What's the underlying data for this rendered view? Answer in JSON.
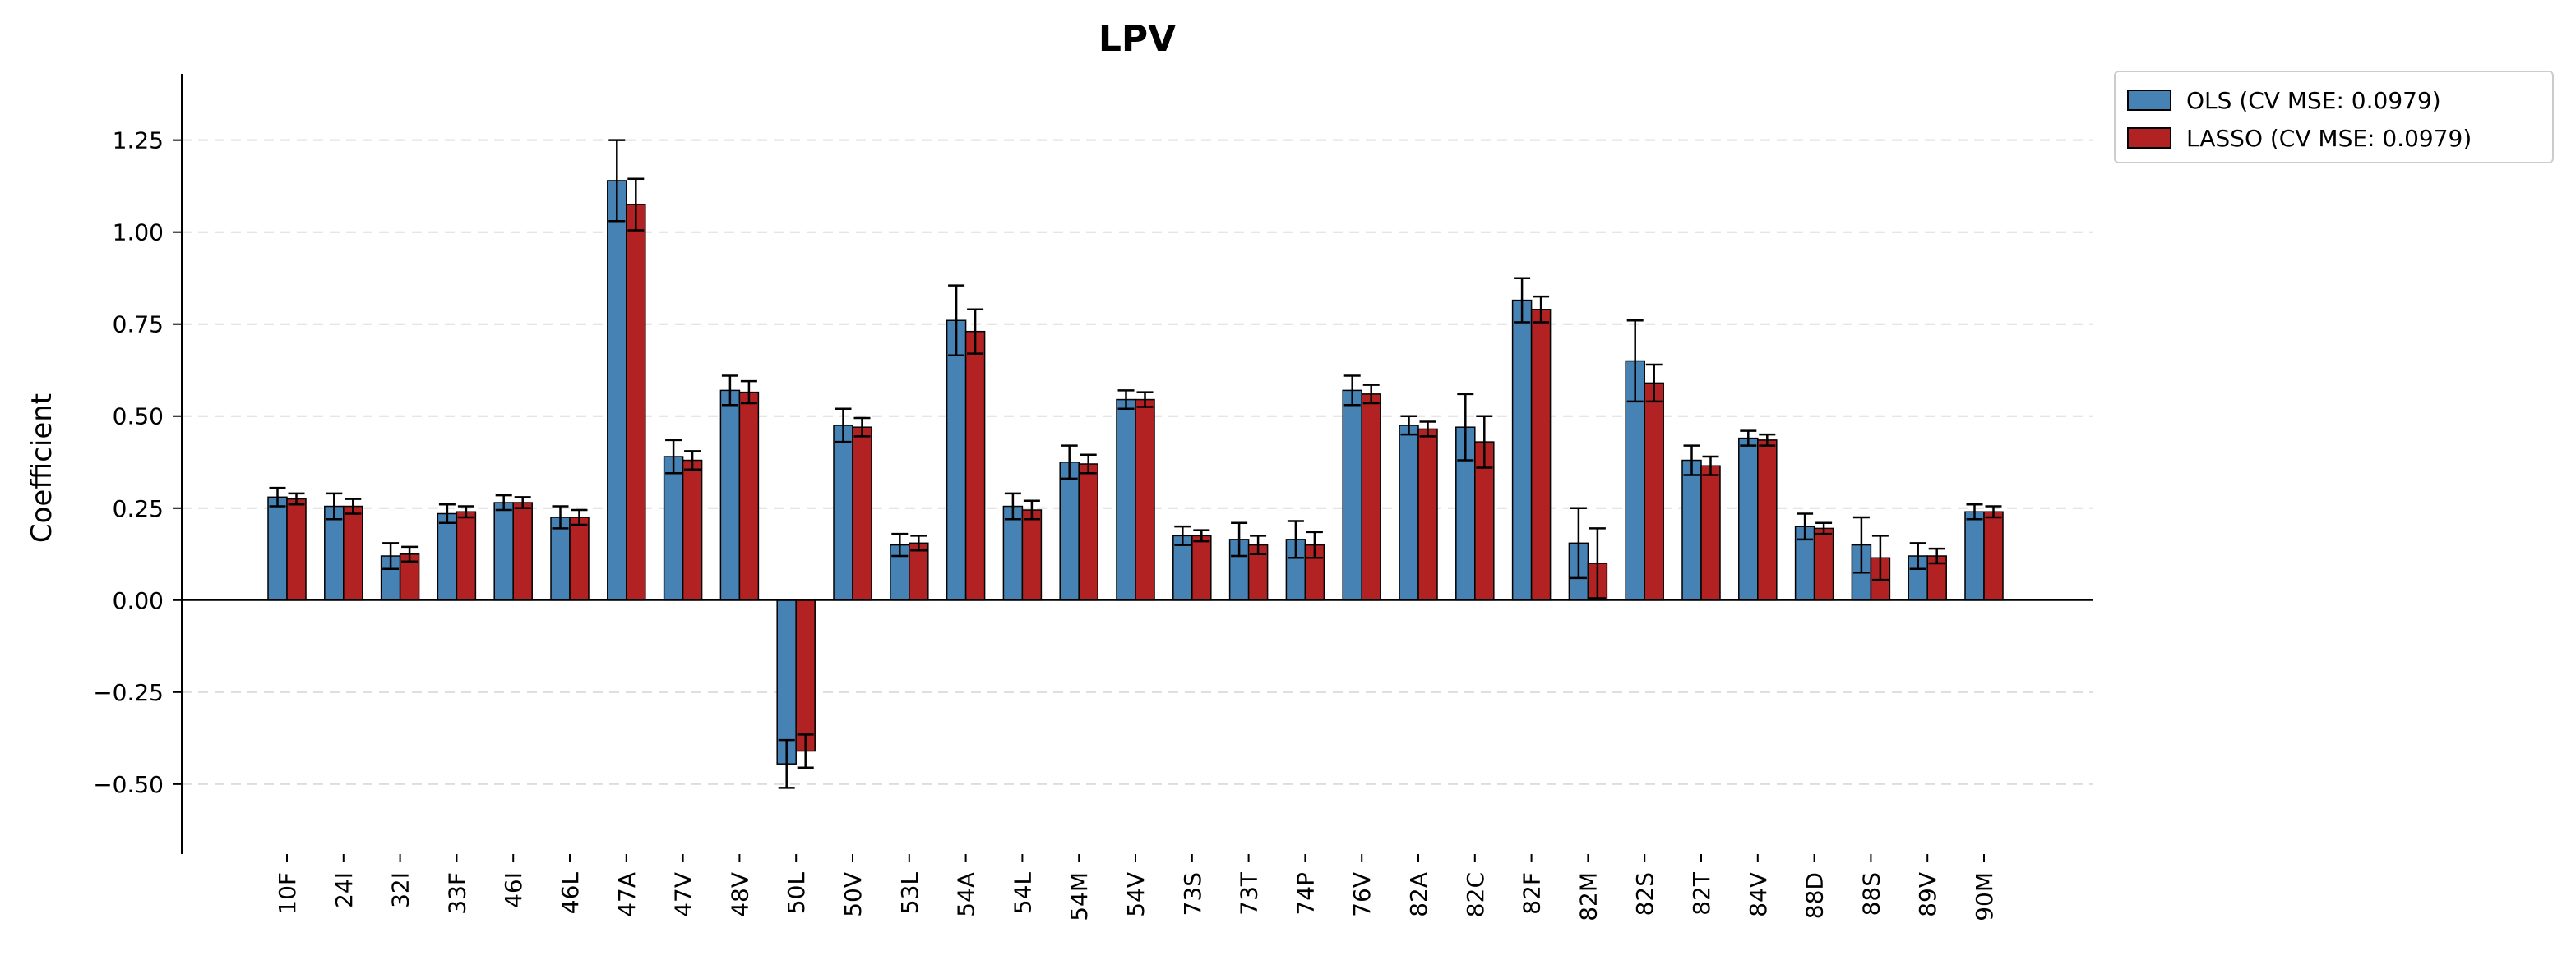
{
  "chart_data": {
    "type": "bar",
    "title": "LPV",
    "xlabel": "",
    "ylabel": "Coefficient",
    "ylim": [
      -0.69,
      1.43
    ],
    "yticks": [
      -0.5,
      -0.25,
      0.0,
      0.25,
      0.5,
      0.75,
      1.0,
      1.25
    ],
    "ytick_labels": [
      "−0.50",
      "−0.25",
      "0.00",
      "0.25",
      "0.50",
      "0.75",
      "1.00",
      "1.25"
    ],
    "grid": "horizontal dashed",
    "legend_position": "outside top-right",
    "categories": [
      "10F",
      "24I",
      "32I",
      "33F",
      "46I",
      "46L",
      "47A",
      "47V",
      "48V",
      "50L",
      "50V",
      "53L",
      "54A",
      "54L",
      "54M",
      "54V",
      "73S",
      "73T",
      "74P",
      "76V",
      "82A",
      "82C",
      "82F",
      "82M",
      "82S",
      "82T",
      "84V",
      "88D",
      "88S",
      "89V",
      "90M"
    ],
    "series": [
      {
        "name": "OLS (CV MSE: 0.0979)",
        "color": "#4682b4",
        "values": [
          0.28,
          0.255,
          0.12,
          0.235,
          0.265,
          0.225,
          1.14,
          0.39,
          0.57,
          -0.445,
          0.475,
          0.15,
          0.76,
          0.255,
          0.375,
          0.545,
          0.175,
          0.165,
          0.165,
          0.57,
          0.475,
          0.47,
          0.815,
          0.155,
          0.65,
          0.38,
          0.44,
          0.2,
          0.15,
          0.12,
          0.24
        ],
        "errors": [
          0.025,
          0.035,
          0.035,
          0.025,
          0.02,
          0.03,
          0.11,
          0.045,
          0.04,
          0.065,
          0.045,
          0.03,
          0.095,
          0.035,
          0.045,
          0.025,
          0.025,
          0.045,
          0.05,
          0.04,
          0.025,
          0.09,
          0.06,
          0.095,
          0.11,
          0.04,
          0.02,
          0.035,
          0.075,
          0.035,
          0.02
        ]
      },
      {
        "name": "LASSO (CV MSE: 0.0979)",
        "color": "#b22222",
        "values": [
          0.275,
          0.255,
          0.125,
          0.24,
          0.265,
          0.225,
          1.075,
          0.38,
          0.565,
          -0.41,
          0.47,
          0.155,
          0.73,
          0.245,
          0.37,
          0.545,
          0.175,
          0.15,
          0.15,
          0.56,
          0.465,
          0.43,
          0.79,
          0.1,
          0.59,
          0.365,
          0.435,
          0.195,
          0.115,
          0.12,
          0.24
        ],
        "errors": [
          0.015,
          0.02,
          0.02,
          0.015,
          0.015,
          0.02,
          0.07,
          0.025,
          0.03,
          0.045,
          0.025,
          0.02,
          0.06,
          0.025,
          0.025,
          0.02,
          0.015,
          0.025,
          0.035,
          0.025,
          0.02,
          0.07,
          0.035,
          0.095,
          0.05,
          0.025,
          0.015,
          0.015,
          0.06,
          0.02,
          0.015
        ]
      }
    ]
  }
}
